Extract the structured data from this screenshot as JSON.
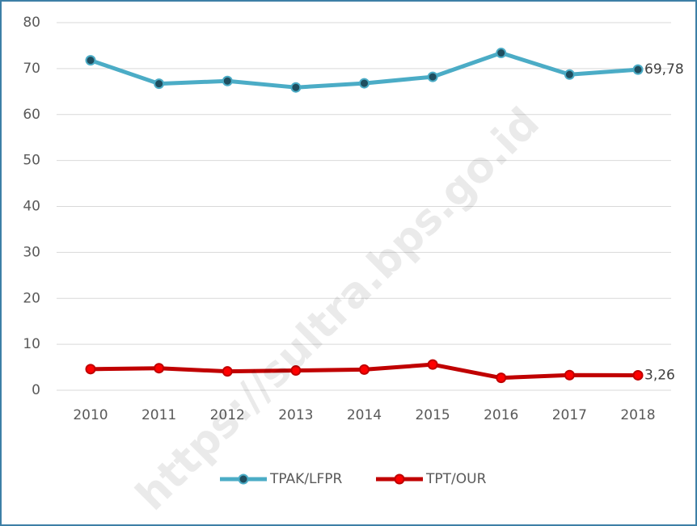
{
  "chart_data": {
    "type": "line",
    "watermark": "https://sultra.bps.go.id",
    "categories": [
      "2010",
      "2011",
      "2012",
      "2013",
      "2014",
      "2015",
      "2016",
      "2017",
      "2018"
    ],
    "series": [
      {
        "name": "TPAK/LFPR",
        "color": "#4bacc6",
        "marker_color": "#1f4e5f",
        "values": [
          71.8,
          66.7,
          67.3,
          65.9,
          66.8,
          68.2,
          73.4,
          68.7,
          69.78
        ],
        "value_labels": [
          null,
          null,
          null,
          null,
          null,
          null,
          null,
          null,
          "69,78"
        ]
      },
      {
        "name": "TPT/OUR",
        "color": "#c00000",
        "marker_color": "#ff0000",
        "values": [
          4.6,
          4.8,
          4.1,
          4.3,
          4.5,
          5.6,
          2.7,
          3.3,
          3.26
        ],
        "value_labels": [
          null,
          null,
          null,
          null,
          null,
          null,
          null,
          null,
          "3,26"
        ]
      }
    ],
    "ylim": [
      0,
      80
    ],
    "yticks": [
      0,
      10,
      20,
      30,
      40,
      50,
      60,
      70,
      80
    ],
    "grid": true,
    "legend": "bottom"
  }
}
